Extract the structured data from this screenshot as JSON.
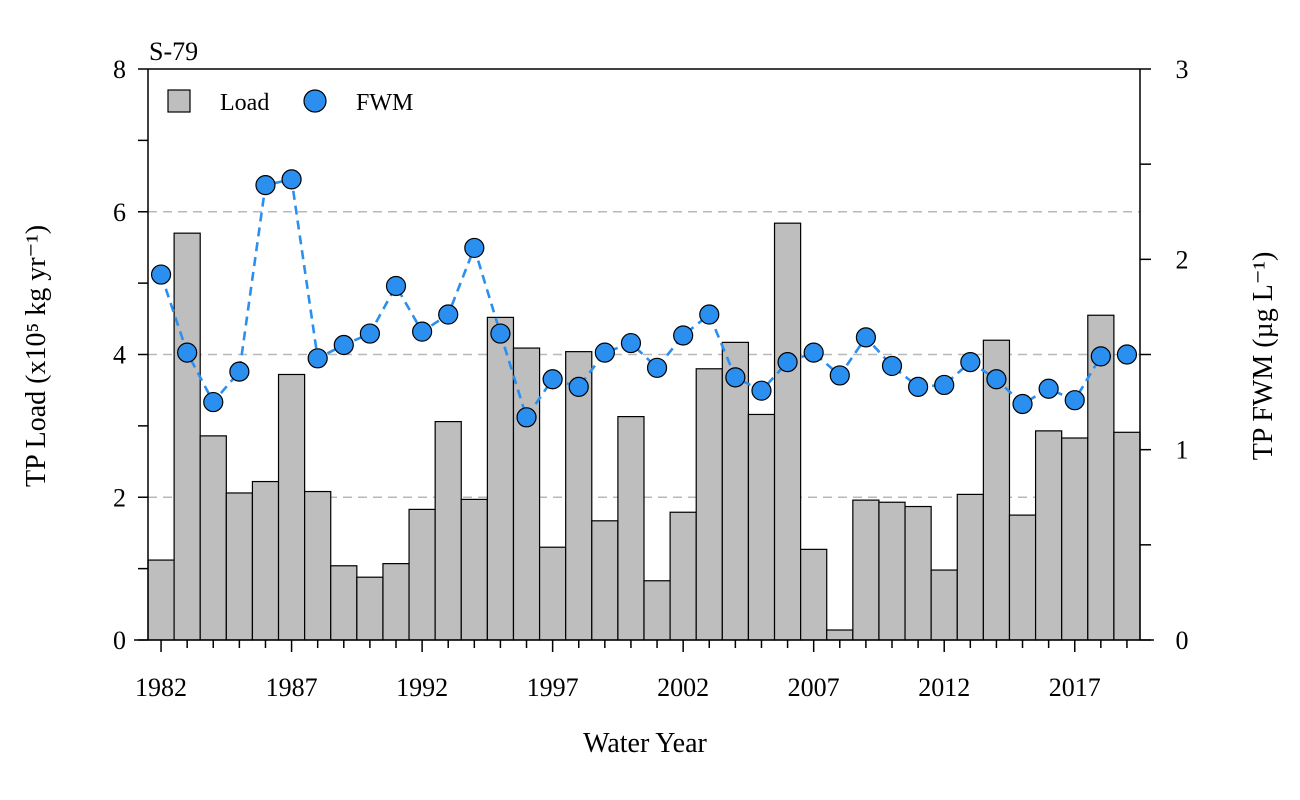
{
  "chart_data": {
    "type": "bar",
    "title": "S-79",
    "xlabel": "Water Year",
    "ylabel_left": "TP Load (x10⁵ kg yr⁻¹)",
    "ylabel_right": "TP FWM (µg L⁻¹)",
    "x": [
      1982,
      1983,
      1984,
      1985,
      1986,
      1987,
      1988,
      1989,
      1990,
      1991,
      1992,
      1993,
      1994,
      1995,
      1996,
      1997,
      1998,
      1999,
      2000,
      2001,
      2002,
      2003,
      2004,
      2005,
      2006,
      2007,
      2008,
      2009,
      2010,
      2011,
      2012,
      2013,
      2014,
      2015,
      2016,
      2017,
      2018,
      2019
    ],
    "x_tick_labels": [
      "1982",
      "1987",
      "1992",
      "1997",
      "2002",
      "2007",
      "2012",
      "2017"
    ],
    "ylim_left": [
      0,
      8
    ],
    "yticks_left": [
      "0",
      "2",
      "4",
      "6",
      "8"
    ],
    "ylim_right": [
      0,
      3
    ],
    "yticks_right": [
      "0",
      "1",
      "2",
      "3"
    ],
    "gridlines_left": [
      2,
      4,
      6
    ],
    "legend_position": "top-left",
    "series": [
      {
        "name": "Load",
        "type": "bar",
        "axis": "left",
        "color": "#bebebe",
        "values": [
          1.12,
          5.7,
          2.86,
          2.06,
          2.22,
          3.72,
          2.08,
          1.04,
          0.88,
          1.07,
          1.83,
          3.06,
          1.97,
          4.52,
          4.09,
          1.3,
          4.04,
          1.67,
          3.13,
          0.83,
          1.79,
          3.8,
          4.17,
          3.16,
          5.84,
          1.27,
          0.14,
          1.96,
          1.93,
          1.87,
          0.98,
          2.04,
          4.2,
          1.75,
          2.93,
          2.83,
          4.55,
          2.91
        ]
      },
      {
        "name": "FWM",
        "type": "line",
        "axis": "right",
        "color": "#2b8ff0",
        "values": [
          1.92,
          1.51,
          1.25,
          1.41,
          2.39,
          2.42,
          1.48,
          1.55,
          1.61,
          1.86,
          1.62,
          1.71,
          2.06,
          1.61,
          1.17,
          1.37,
          1.33,
          1.51,
          1.56,
          1.43,
          1.6,
          1.71,
          1.38,
          1.31,
          1.46,
          1.51,
          1.39,
          1.59,
          1.44,
          1.33,
          1.34,
          1.46,
          1.37,
          1.24,
          1.32,
          1.26,
          1.49,
          1.5
        ]
      }
    ]
  }
}
